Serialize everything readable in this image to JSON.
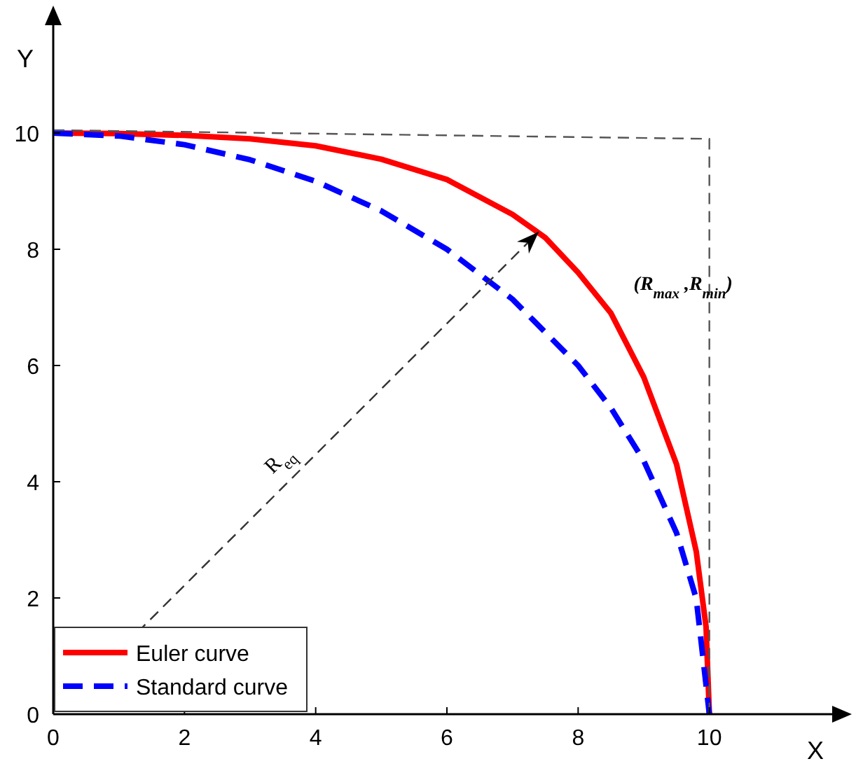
{
  "chart_data": {
    "type": "line",
    "xlabel": "X",
    "ylabel": "Y",
    "xlim": [
      0,
      12
    ],
    "ylim": [
      0,
      12
    ],
    "xticks": [
      0,
      2,
      4,
      6,
      8,
      10
    ],
    "yticks": [
      0,
      2,
      4,
      6,
      8,
      10
    ],
    "grid": false,
    "legend": "bottom left",
    "series": [
      {
        "name": "Euler curve",
        "color": "#ff0000",
        "line_style": "solid",
        "x": [
          0,
          1,
          2,
          3,
          4,
          5,
          6,
          7,
          7.5,
          8,
          8.5,
          9,
          9.5,
          9.8,
          9.95,
          10
        ],
        "values": [
          10,
          9.99,
          9.96,
          9.9,
          9.78,
          9.55,
          9.2,
          8.6,
          8.2,
          7.6,
          6.9,
          5.8,
          4.3,
          2.8,
          1.5,
          0
        ]
      },
      {
        "name": "Standard curve",
        "color": "#0000ff",
        "line_style": "dashed",
        "x": [
          0,
          1,
          2,
          3,
          4,
          5,
          6,
          7,
          8,
          8.5,
          9,
          9.5,
          9.8,
          10
        ],
        "values": [
          10,
          9.95,
          9.8,
          9.54,
          9.17,
          8.66,
          8.0,
          7.14,
          6.0,
          5.27,
          4.36,
          3.12,
          1.99,
          0
        ]
      },
      {
        "color": "#555555",
        "line_style": "dashed",
        "x": [
          0,
          10,
          10
        ],
        "values": [
          10.05,
          9.9,
          0
        ]
      }
    ],
    "annotations": [
      "R$_{eq}$",
      "(R$_{max}$ ,R$_{min}$)"
    ]
  }
}
